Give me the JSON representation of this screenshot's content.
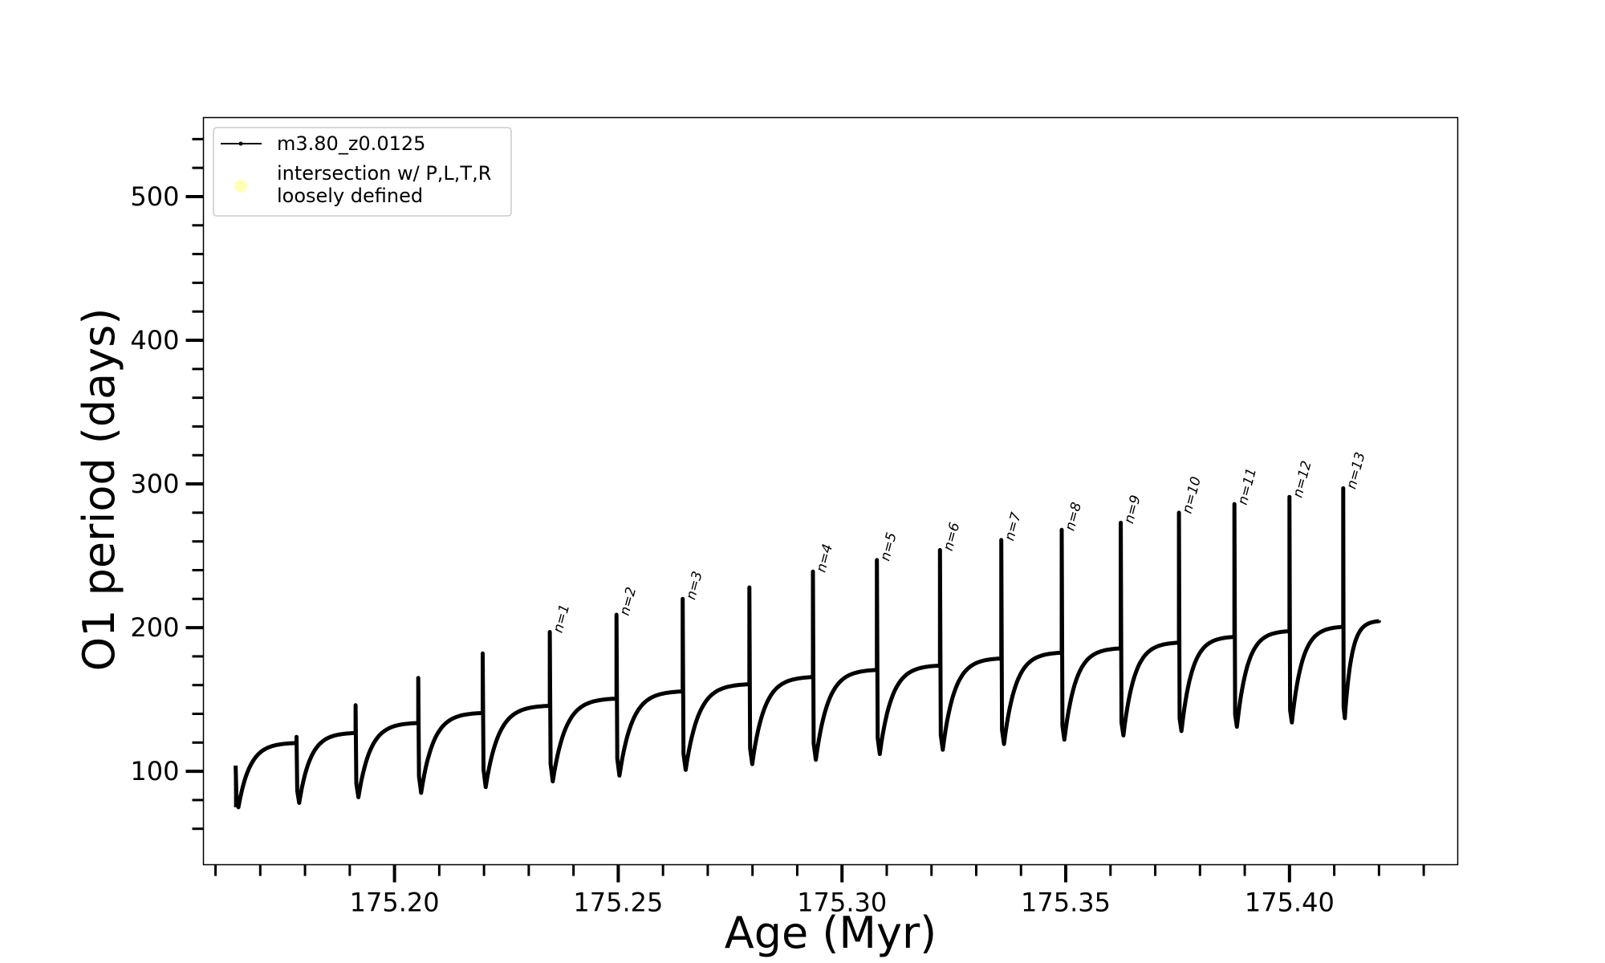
{
  "chart_data": {
    "type": "line",
    "title": "",
    "xlabel": "Age (Myr)",
    "ylabel": "O1 period (days)",
    "xlim": [
      175.1573,
      175.4376
    ],
    "ylim": [
      35,
      555
    ],
    "x_major_ticks": [
      175.2,
      175.25,
      175.3,
      175.35,
      175.4
    ],
    "x_tick_labels": [
      "175.20",
      "175.25",
      "175.30",
      "175.35",
      "175.40"
    ],
    "y_major_ticks": [
      100,
      200,
      300,
      400,
      500
    ],
    "y_tick_labels": [
      "100",
      "200",
      "300",
      "400",
      "500"
    ],
    "grid": false,
    "legend": {
      "placement": "top-left",
      "entries": [
        {
          "label": "m3.80_z0.0125",
          "marker": "line-dot",
          "color": "#000000"
        },
        {
          "label_lines": [
            "intersection w/ P,L,T,R",
            "loosely defined"
          ],
          "marker": "circle",
          "color": "#ffffb0"
        }
      ]
    },
    "series": [
      {
        "name": "m3.80_z0.0125",
        "color": "#000000",
        "pulses": [
          {
            "x": 175.1645,
            "peak": 104,
            "pre": 0,
            "min": 75,
            "plateau": 120
          },
          {
            "x": 175.1781,
            "peak": 124,
            "pre": 120,
            "min": 78,
            "plateau": 127
          },
          {
            "x": 175.1913,
            "peak": 146,
            "pre": 127,
            "min": 82,
            "plateau": 134
          },
          {
            "x": 175.2053,
            "peak": 165,
            "pre": 134,
            "min": 85,
            "plateau": 141
          },
          {
            "x": 175.2197,
            "peak": 182,
            "pre": 141,
            "min": 89,
            "plateau": 146
          },
          {
            "x": 175.2347,
            "peak": 197,
            "pre": 146,
            "min": 93,
            "plateau": 151
          },
          {
            "x": 175.2496,
            "peak": 209,
            "pre": 151,
            "min": 97,
            "plateau": 156
          },
          {
            "x": 175.2644,
            "peak": 220,
            "pre": 156,
            "min": 101,
            "plateau": 161
          },
          {
            "x": 175.2793,
            "peak": 228,
            "pre": 161,
            "min": 105,
            "plateau": 166
          },
          {
            "x": 175.2935,
            "peak": 239,
            "pre": 166,
            "min": 108,
            "plateau": 171
          },
          {
            "x": 175.3078,
            "peak": 247,
            "pre": 171,
            "min": 112,
            "plateau": 174
          },
          {
            "x": 175.3219,
            "peak": 254,
            "pre": 174,
            "min": 115,
            "plateau": 179
          },
          {
            "x": 175.3356,
            "peak": 261,
            "pre": 179,
            "min": 119,
            "plateau": 183
          },
          {
            "x": 175.3491,
            "peak": 268,
            "pre": 183,
            "min": 122,
            "plateau": 186
          },
          {
            "x": 175.3623,
            "peak": 273,
            "pre": 186,
            "min": 125,
            "plateau": 190
          },
          {
            "x": 175.3753,
            "peak": 280,
            "pre": 190,
            "min": 128,
            "plateau": 194
          },
          {
            "x": 175.3877,
            "peak": 286,
            "pre": 194,
            "min": 131,
            "plateau": 198
          },
          {
            "x": 175.4,
            "peak": 291,
            "pre": 198,
            "min": 134,
            "plateau": 201
          },
          {
            "x": 175.412,
            "peak": 297,
            "pre": 201,
            "min": 137,
            "plateau": 205
          }
        ],
        "end": {
          "x": 175.42,
          "y": 205
        }
      }
    ],
    "annotations": [
      {
        "text": "n=1",
        "x": 175.2347,
        "y": 197
      },
      {
        "text": "n=2",
        "x": 175.2496,
        "y": 209
      },
      {
        "text": "n=3",
        "x": 175.2644,
        "y": 220
      },
      {
        "text": "n=4",
        "x": 175.2935,
        "y": 239
      },
      {
        "text": "n=5",
        "x": 175.3078,
        "y": 247
      },
      {
        "text": "n=6",
        "x": 175.3219,
        "y": 254
      },
      {
        "text": "n=7",
        "x": 175.3356,
        "y": 261
      },
      {
        "text": "n=8",
        "x": 175.3491,
        "y": 268
      },
      {
        "text": "n=9",
        "x": 175.3623,
        "y": 273
      },
      {
        "text": "n=10",
        "x": 175.3753,
        "y": 280
      },
      {
        "text": "n=11",
        "x": 175.3877,
        "y": 286
      },
      {
        "text": "n=12",
        "x": 175.4,
        "y": 291
      },
      {
        "text": "n=13",
        "x": 175.412,
        "y": 297
      }
    ]
  }
}
